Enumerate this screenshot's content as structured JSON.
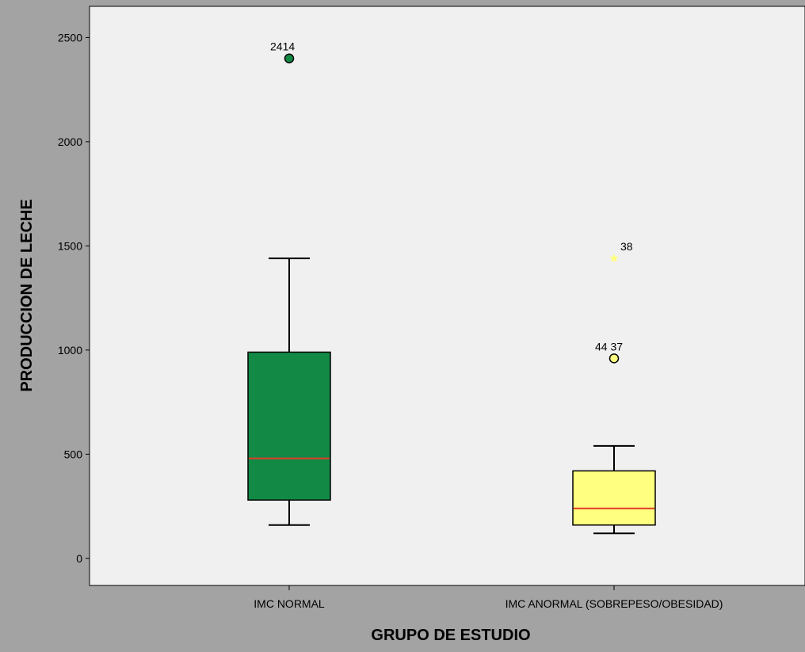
{
  "chart_data": {
    "type": "box",
    "xlabel": "GRUPO DE ESTUDIO",
    "ylabel": "PRODUCCION DE LECHE",
    "ylim": [
      -130,
      2650
    ],
    "yticks": [
      0,
      500,
      1000,
      1500,
      2000,
      2500
    ],
    "grid": false,
    "legend": "none",
    "colors": {
      "figure_background": "#a3a3a3",
      "plot_background": "#f0f0f0",
      "median_line": "#e53a2a"
    },
    "groups": [
      {
        "category": "IMC NORMAL",
        "color": "#128a46",
        "whisker_low": 160,
        "q1": 280,
        "median": 480,
        "q3": 990,
        "whisker_high": 1440,
        "outliers": [
          {
            "value": 2400,
            "label": "2414",
            "marker": "circle"
          }
        ]
      },
      {
        "category": "IMC ANORMAL (SOBREPESO/OBESIDAD)",
        "color": "#ffff80",
        "whisker_low": 120,
        "q1": 160,
        "median": 240,
        "q3": 420,
        "whisker_high": 540,
        "outliers": [
          {
            "value": 960,
            "label": "44  37",
            "marker": "circle"
          },
          {
            "value": 1440,
            "label": "38",
            "marker": "star"
          }
        ]
      }
    ]
  }
}
